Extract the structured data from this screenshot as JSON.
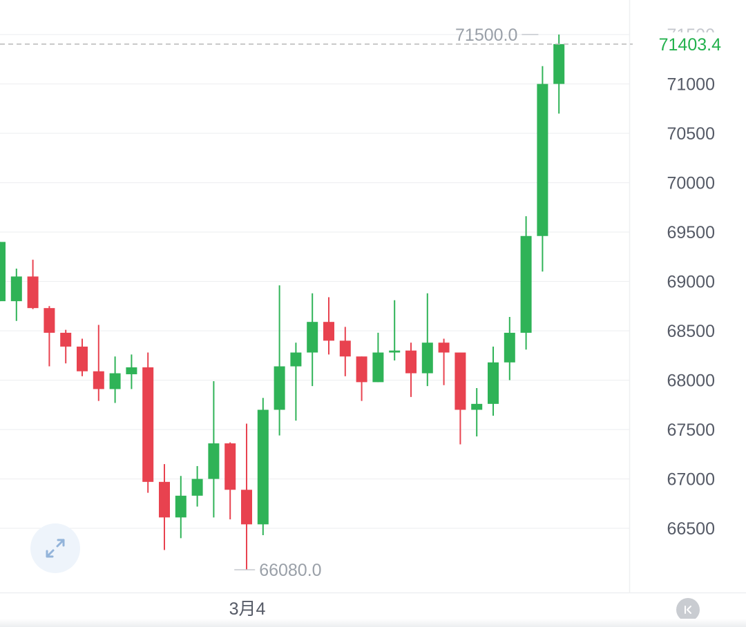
{
  "chart_data": {
    "type": "candlestick",
    "y_axis_labels": [
      "71500",
      "71000",
      "70500",
      "70000",
      "69500",
      "69000",
      "68500",
      "68000",
      "67500",
      "67000",
      "66500"
    ],
    "ylim": [
      65850,
      71850
    ],
    "x_axis_labels": [
      {
        "label": "3月4",
        "index": 15
      }
    ],
    "last_price": "71403.4",
    "high_marker": {
      "label": "71500.0",
      "value": 71500.0,
      "index": 33
    },
    "low_marker": {
      "label": "66080.0",
      "value": 66080.0,
      "index": 14
    },
    "colors": {
      "up": "#2fb357",
      "down": "#e8424f",
      "last_line": "#b7b7b7",
      "grid": "#eeeff1"
    },
    "candles": [
      {
        "o": 68800,
        "h": 69400,
        "l": 68800,
        "c": 69400
      },
      {
        "o": 68800,
        "h": 69130,
        "l": 68600,
        "c": 69050
      },
      {
        "o": 69050,
        "h": 69220,
        "l": 68720,
        "c": 68730
      },
      {
        "o": 68730,
        "h": 68750,
        "l": 68140,
        "c": 68480
      },
      {
        "o": 68480,
        "h": 68510,
        "l": 68170,
        "c": 68340
      },
      {
        "o": 68340,
        "h": 68420,
        "l": 68040,
        "c": 68090
      },
      {
        "o": 68090,
        "h": 68560,
        "l": 67790,
        "c": 67910
      },
      {
        "o": 67910,
        "h": 68240,
        "l": 67770,
        "c": 68070
      },
      {
        "o": 68060,
        "h": 68260,
        "l": 67910,
        "c": 68130
      },
      {
        "o": 68130,
        "h": 68280,
        "l": 66860,
        "c": 66970
      },
      {
        "o": 66970,
        "h": 67150,
        "l": 66280,
        "c": 66610
      },
      {
        "o": 66610,
        "h": 67030,
        "l": 66400,
        "c": 66830
      },
      {
        "o": 66830,
        "h": 67130,
        "l": 66720,
        "c": 67000
      },
      {
        "o": 67000,
        "h": 67990,
        "l": 66610,
        "c": 67360
      },
      {
        "o": 67360,
        "h": 67370,
        "l": 66590,
        "c": 66890
      },
      {
        "o": 66890,
        "h": 67560,
        "l": 66080,
        "c": 66540
      },
      {
        "o": 66540,
        "h": 67820,
        "l": 66430,
        "c": 67700
      },
      {
        "o": 67700,
        "h": 68960,
        "l": 67440,
        "c": 68140
      },
      {
        "o": 68140,
        "h": 68380,
        "l": 67590,
        "c": 68280
      },
      {
        "o": 68280,
        "h": 68880,
        "l": 67940,
        "c": 68590
      },
      {
        "o": 68590,
        "h": 68840,
        "l": 68260,
        "c": 68400
      },
      {
        "o": 68400,
        "h": 68540,
        "l": 68040,
        "c": 68240
      },
      {
        "o": 68240,
        "h": 68240,
        "l": 67790,
        "c": 67980
      },
      {
        "o": 67980,
        "h": 68480,
        "l": 67980,
        "c": 68280
      },
      {
        "o": 68280,
        "h": 68810,
        "l": 68200,
        "c": 68300
      },
      {
        "o": 68300,
        "h": 68380,
        "l": 67830,
        "c": 68070
      },
      {
        "o": 68070,
        "h": 68880,
        "l": 67940,
        "c": 68380
      },
      {
        "o": 68380,
        "h": 68420,
        "l": 67950,
        "c": 68280
      },
      {
        "o": 68280,
        "h": 68280,
        "l": 67350,
        "c": 67700
      },
      {
        "o": 67700,
        "h": 67920,
        "l": 67430,
        "c": 67760
      },
      {
        "o": 67760,
        "h": 68340,
        "l": 67640,
        "c": 68180
      },
      {
        "o": 68180,
        "h": 68640,
        "l": 68000,
        "c": 68480
      },
      {
        "o": 68480,
        "h": 69660,
        "l": 68310,
        "c": 69460
      },
      {
        "o": 69460,
        "h": 71180,
        "l": 69100,
        "c": 71000
      },
      {
        "o": 71000,
        "h": 71500,
        "l": 70700,
        "c": 71403.4
      }
    ]
  }
}
